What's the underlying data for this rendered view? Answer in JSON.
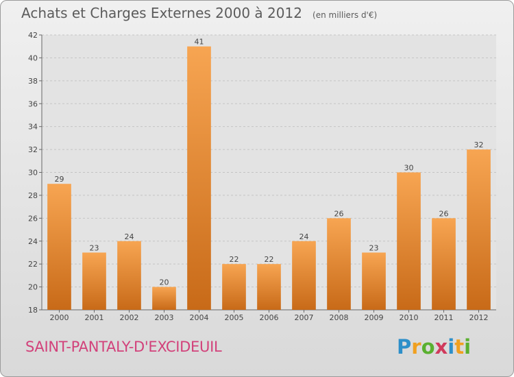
{
  "header": {
    "title": "Achats et Charges Externes 2000 à 2012",
    "unit": "(en milliers d'€)"
  },
  "footer": {
    "commune": "SAINT-PANTALY-D'EXCIDEUIL",
    "logo": [
      "P",
      "r",
      "o",
      "x",
      "i",
      "t",
      "i"
    ]
  },
  "colors": {
    "bar_light": "#f7a552",
    "bar_dark": "#c86a18",
    "logo": [
      "#2d8fc9",
      "#f0a020",
      "#5ab030",
      "#d03a5c",
      "#2d8fc9",
      "#f0a020",
      "#5ab030"
    ]
  },
  "chart_data": {
    "type": "bar",
    "categories": [
      "2000",
      "2001",
      "2002",
      "2003",
      "2004",
      "2005",
      "2006",
      "2007",
      "2008",
      "2009",
      "2010",
      "2011",
      "2012"
    ],
    "values": [
      29,
      23,
      24,
      20,
      41,
      22,
      22,
      24,
      26,
      23,
      30,
      26,
      32
    ],
    "ylim": [
      18,
      42
    ],
    "yticks": [
      18,
      20,
      22,
      24,
      26,
      28,
      30,
      32,
      34,
      36,
      38,
      40,
      42
    ],
    "grid": true
  }
}
